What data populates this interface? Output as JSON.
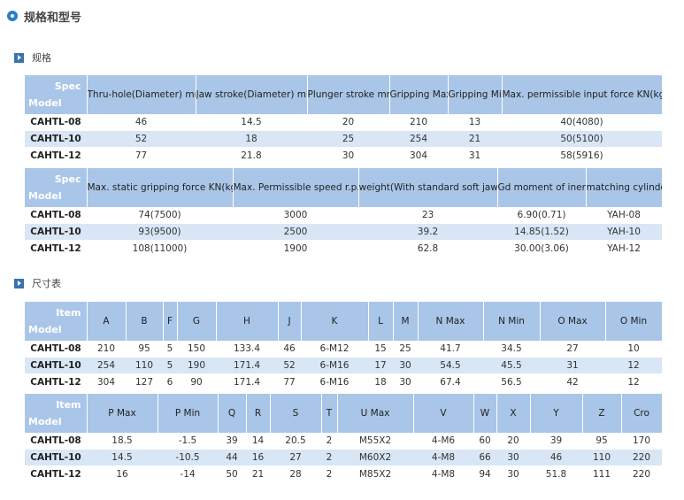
{
  "page": {
    "title": "规格和型号"
  },
  "sections": {
    "spec_title": "规格",
    "dim_title": "尺寸表"
  },
  "spec_table_1": {
    "corner_top": "Spec",
    "corner_bottom": "Model",
    "headers": [
      "Thru-hole(Diameter) mm",
      "Jaw stroke(Diameter) mm",
      "Plunger stroke mm",
      "Gripping Max",
      "Gripping Min",
      "Max. permissible input force KN(kgf)"
    ],
    "rows": [
      {
        "model": "CAHTL-08",
        "cells": [
          "46",
          "14.5",
          "20",
          "210",
          "13",
          "40(4080)"
        ]
      },
      {
        "model": "CAHTL-10",
        "cells": [
          "52",
          "18",
          "25",
          "254",
          "21",
          "50(5100)"
        ]
      },
      {
        "model": "CAHTL-12",
        "cells": [
          "77",
          "21.8",
          "30",
          "304",
          "31",
          "58(5916)"
        ]
      }
    ]
  },
  "spec_table_2": {
    "corner_top": "Spec",
    "corner_bottom": "Model",
    "headers": [
      "Max. static gripping force KN(kgf)",
      "Max. Permissible speed r.p.m",
      "weight(With standard soft jaws)",
      "Gd moment of inertia",
      "matching cylinder"
    ],
    "rows": [
      {
        "model": "CAHTL-08",
        "cells": [
          "74(7500)",
          "3000",
          "23",
          "6.90(0.71)",
          "YAH-08"
        ]
      },
      {
        "model": "CAHTL-10",
        "cells": [
          "93(9500)",
          "2500",
          "39.2",
          "14.85(1.52)",
          "YAH-10"
        ]
      },
      {
        "model": "CAHTL-12",
        "cells": [
          "108(11000)",
          "1900",
          "62.8",
          "30.00(3.06)",
          "YAH-12"
        ]
      }
    ]
  },
  "dim_table_1": {
    "corner_top": "Item",
    "corner_bottom": "Model",
    "headers": [
      "A",
      "B",
      "F",
      "G",
      "H",
      "J",
      "K",
      "L",
      "M",
      "N Max",
      "N Min",
      "O Max",
      "O Min"
    ],
    "rows": [
      {
        "model": "CAHTL-08",
        "cells": [
          "210",
          "95",
          "5",
          "150",
          "133.4",
          "46",
          "6-M12",
          "15",
          "25",
          "41.7",
          "34.5",
          "27",
          "10"
        ]
      },
      {
        "model": "CAHTL-10",
        "cells": [
          "254",
          "110",
          "5",
          "190",
          "171.4",
          "52",
          "6-M16",
          "17",
          "30",
          "54.5",
          "45.5",
          "31",
          "12"
        ]
      },
      {
        "model": "CAHTL-12",
        "cells": [
          "304",
          "127",
          "6",
          "90",
          "171.4",
          "77",
          "6-M16",
          "18",
          "30",
          "67.4",
          "56.5",
          "42",
          "12"
        ]
      }
    ]
  },
  "dim_table_2": {
    "corner_top": "Item",
    "corner_bottom": "Model",
    "headers": [
      "P Max",
      "P Min",
      "Q",
      "R",
      "S",
      "T",
      "U Max",
      "V",
      "W",
      "X",
      "Y",
      "Z",
      "Cro"
    ],
    "rows": [
      {
        "model": "CAHTL-08",
        "cells": [
          "18.5",
          "-1.5",
          "39",
          "14",
          "20.5",
          "2",
          "M55X2",
          "4-M6",
          "60",
          "20",
          "39",
          "95",
          "170"
        ]
      },
      {
        "model": "CAHTL-10",
        "cells": [
          "14.5",
          "-10.5",
          "44",
          "16",
          "27",
          "2",
          "M60X2",
          "4-M8",
          "66",
          "30",
          "46",
          "110",
          "220"
        ]
      },
      {
        "model": "CAHTL-12",
        "cells": [
          "16",
          "-14",
          "50",
          "21",
          "28",
          "2",
          "M85X2",
          "4-M8",
          "94",
          "30",
          "51.8",
          "111",
          "220"
        ]
      }
    ]
  },
  "colors": {
    "header_bg": "#a9c6e8",
    "alt_row_bg": "#d8e6f5",
    "icon_blue": "#2a7fc8"
  }
}
